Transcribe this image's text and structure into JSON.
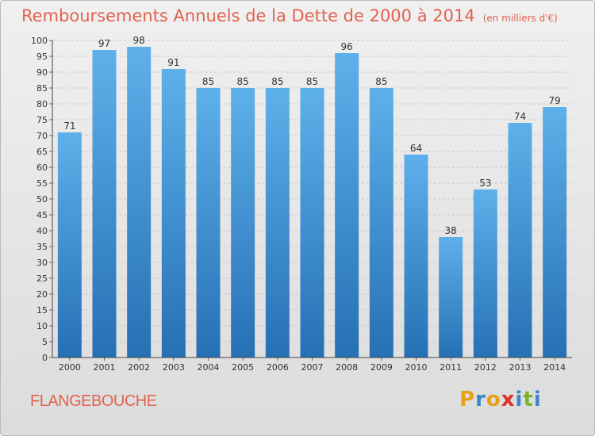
{
  "title": "Remboursements Annuels de la Dette de 2000 à 2014",
  "units_note": "(en milliers d'€)",
  "commune": "FLANGEBOUCHE",
  "logo": {
    "text": "Proxiti",
    "letter_colors": [
      "#e8a01c",
      "#3a86c8",
      "#e8a01c",
      "#d8322c",
      "#3a86c8",
      "#7bb32e",
      "#3a86c8"
    ]
  },
  "colors": {
    "bar_top": "#5eb0ea",
    "bar_bottom": "#2670b4",
    "title": "#e2624f",
    "grid": "#c8c8c8"
  },
  "chart_data": {
    "type": "bar",
    "title": "Remboursements Annuels de la Dette de 2000 à 2014",
    "subtitle": "(en milliers d'€)",
    "xlabel": "",
    "ylabel": "",
    "categories": [
      "2000",
      "2001",
      "2002",
      "2003",
      "2004",
      "2005",
      "2006",
      "2007",
      "2008",
      "2009",
      "2010",
      "2011",
      "2012",
      "2013",
      "2014"
    ],
    "values": [
      71,
      97,
      98,
      91,
      85,
      85,
      85,
      85,
      96,
      85,
      64,
      38,
      53,
      74,
      79
    ],
    "ylim": [
      0,
      100
    ],
    "ytick_step": 5,
    "grid": "horizontal dashed",
    "legend": "none",
    "data_labels": true
  }
}
